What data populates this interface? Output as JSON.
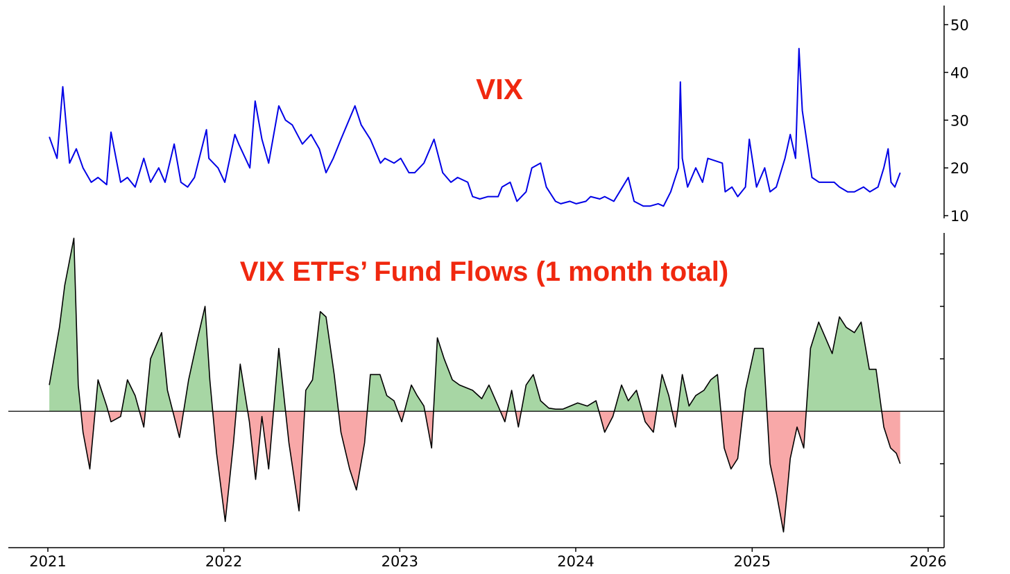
{
  "chart_data": [
    {
      "type": "line",
      "title": "VIX",
      "color": "#0000e6",
      "x_axis": "shared",
      "y_axis_side": "right",
      "ylim": [
        9,
        54
      ],
      "yticks": [
        10,
        20,
        30,
        40,
        50
      ],
      "ytick_labels": [
        "10",
        "20",
        "30",
        "40",
        "50"
      ],
      "x": [
        "2021-01-04",
        "2021-01-20",
        "2021-02-01",
        "2021-02-15",
        "2021-03-01",
        "2021-03-15",
        "2021-04-01",
        "2021-04-15",
        "2021-05-03",
        "2021-05-12",
        "2021-06-01",
        "2021-06-15",
        "2021-07-01",
        "2021-07-19",
        "2021-08-02",
        "2021-08-19",
        "2021-09-01",
        "2021-09-20",
        "2021-10-04",
        "2021-10-18",
        "2021-11-01",
        "2021-11-26",
        "2021-12-01",
        "2021-12-20",
        "2022-01-03",
        "2022-01-24",
        "2022-02-01",
        "2022-02-24",
        "2022-03-07",
        "2022-03-21",
        "2022-04-04",
        "2022-04-25",
        "2022-05-09",
        "2022-05-23",
        "2022-06-13",
        "2022-07-01",
        "2022-07-18",
        "2022-08-01",
        "2022-08-16",
        "2022-09-01",
        "2022-09-30",
        "2022-10-13",
        "2022-11-01",
        "2022-11-22",
        "2022-12-01",
        "2022-12-20",
        "2023-01-03",
        "2023-01-20",
        "2023-02-01",
        "2023-02-20",
        "2023-03-13",
        "2023-03-31",
        "2023-04-17",
        "2023-05-01",
        "2023-05-22",
        "2023-06-01",
        "2023-06-16",
        "2023-07-03",
        "2023-07-24",
        "2023-08-01",
        "2023-08-18",
        "2023-09-01",
        "2023-09-20",
        "2023-10-02",
        "2023-10-20",
        "2023-11-01",
        "2023-11-20",
        "2023-12-01",
        "2023-12-20",
        "2024-01-02",
        "2024-01-22",
        "2024-02-01",
        "2024-02-20",
        "2024-03-01",
        "2024-03-20",
        "2024-04-01",
        "2024-04-19",
        "2024-05-01",
        "2024-05-20",
        "2024-06-03",
        "2024-06-20",
        "2024-07-01",
        "2024-07-16",
        "2024-08-01",
        "2024-08-05",
        "2024-08-09",
        "2024-08-20",
        "2024-09-06",
        "2024-09-20",
        "2024-10-01",
        "2024-10-31",
        "2024-11-06",
        "2024-11-20",
        "2024-12-02",
        "2024-12-18",
        "2024-12-26",
        "2025-01-10",
        "2025-01-27",
        "2025-02-07",
        "2025-02-20",
        "2025-03-10",
        "2025-03-21",
        "2025-04-01",
        "2025-04-08",
        "2025-04-15",
        "2025-04-25",
        "2025-05-05",
        "2025-05-20",
        "2025-06-02",
        "2025-06-20",
        "2025-07-01",
        "2025-07-18",
        "2025-08-01",
        "2025-08-20",
        "2025-09-02",
        "2025-09-19",
        "2025-10-01",
        "2025-10-10",
        "2025-10-16",
        "2025-10-24",
        "2025-11-04"
      ],
      "y": [
        26.5,
        22,
        37,
        21,
        24,
        20,
        17,
        18,
        16.5,
        27.5,
        17,
        18,
        16,
        22,
        17,
        20,
        17,
        25,
        17,
        16,
        18,
        28,
        22,
        20,
        17,
        27,
        25,
        20,
        34,
        26,
        21,
        33,
        30,
        29,
        25,
        27,
        24,
        19,
        22,
        26,
        33,
        29,
        26,
        21,
        22,
        21,
        22,
        19,
        19,
        21,
        26,
        19,
        17,
        18,
        17,
        14,
        13.5,
        14,
        14,
        16,
        17,
        13,
        15,
        20,
        21,
        16,
        13,
        12.5,
        13,
        12.5,
        13,
        14,
        13.5,
        14,
        13,
        15,
        18,
        13,
        12,
        12,
        12.5,
        12,
        15,
        20,
        38,
        22,
        16,
        20,
        17,
        22,
        21,
        15,
        16,
        14,
        16,
        26,
        16,
        20,
        15,
        16,
        22,
        27,
        22,
        45,
        32,
        25,
        18,
        17,
        17,
        17,
        16,
        15,
        15,
        16,
        15,
        16,
        20,
        24,
        17,
        16,
        19
      ]
    },
    {
      "type": "area",
      "title": "VIX ETFs’ Fund Flows (1 month total)",
      "x_axis": "shared",
      "y_axis_side": "right",
      "ytick_labels_shown": false,
      "positive_color": "#a7d6a4",
      "negative_color": "#f8a8a8",
      "line_color": "#000000",
      "ylim": [
        -1.3,
        1.7
      ],
      "x": [
        "2021-01-04",
        "2021-01-25",
        "2021-02-05",
        "2021-02-24",
        "2021-03-05",
        "2021-03-15",
        "2021-03-29",
        "2021-04-15",
        "2021-05-03",
        "2021-05-12",
        "2021-06-01",
        "2021-06-15",
        "2021-07-01",
        "2021-07-19",
        "2021-08-02",
        "2021-08-25",
        "2021-09-06",
        "2021-10-01",
        "2021-10-20",
        "2021-11-08",
        "2021-11-23",
        "2021-12-03",
        "2021-12-17",
        "2022-01-04",
        "2022-01-21",
        "2022-02-04",
        "2022-02-23",
        "2022-03-08",
        "2022-03-21",
        "2022-04-04",
        "2022-04-25",
        "2022-05-16",
        "2022-06-06",
        "2022-06-20",
        "2022-07-04",
        "2022-07-20",
        "2022-08-01",
        "2022-08-18",
        "2022-09-01",
        "2022-09-19",
        "2022-10-03",
        "2022-10-20",
        "2022-11-01",
        "2022-11-21",
        "2022-12-05",
        "2022-12-20",
        "2023-01-05",
        "2023-01-25",
        "2023-02-06",
        "2023-02-20",
        "2023-03-08",
        "2023-03-20",
        "2023-04-03",
        "2023-04-20",
        "2023-05-05",
        "2023-06-01",
        "2023-06-20",
        "2023-07-05",
        "2023-07-24",
        "2023-08-07",
        "2023-08-21",
        "2023-09-04",
        "2023-09-20",
        "2023-10-05",
        "2023-10-20",
        "2023-11-06",
        "2023-11-20",
        "2023-12-05",
        "2024-01-05",
        "2024-01-25",
        "2024-02-12",
        "2024-03-01",
        "2024-03-18",
        "2024-04-05",
        "2024-04-19",
        "2024-05-06",
        "2024-05-24",
        "2024-06-10",
        "2024-06-28",
        "2024-07-12",
        "2024-07-26",
        "2024-08-09",
        "2024-08-23",
        "2024-09-06",
        "2024-09-23",
        "2024-10-07",
        "2024-10-21",
        "2024-11-04",
        "2024-11-18",
        "2024-12-02",
        "2024-12-18",
        "2025-01-06",
        "2025-01-24",
        "2025-02-07",
        "2025-02-21",
        "2025-03-07",
        "2025-03-21",
        "2025-04-04",
        "2025-04-18",
        "2025-05-02",
        "2025-05-19",
        "2025-06-02",
        "2025-06-16",
        "2025-07-01",
        "2025-07-15",
        "2025-08-01",
        "2025-08-15",
        "2025-09-01",
        "2025-09-15",
        "2025-10-01",
        "2025-10-15",
        "2025-10-27",
        "2025-11-04"
      ],
      "y": [
        0.25,
        0.8,
        1.2,
        1.65,
        0.25,
        -0.2,
        -0.55,
        0.3,
        0.05,
        -0.1,
        -0.05,
        0.3,
        0.15,
        -0.15,
        0.5,
        0.75,
        0.2,
        -0.25,
        0.3,
        0.7,
        1.0,
        0.3,
        -0.4,
        -1.05,
        -0.3,
        0.45,
        -0.1,
        -0.65,
        -0.05,
        -0.55,
        0.6,
        -0.3,
        -0.95,
        0.2,
        0.3,
        0.95,
        0.9,
        0.35,
        -0.2,
        -0.55,
        -0.75,
        -0.3,
        0.35,
        0.35,
        0.15,
        0.1,
        -0.1,
        0.25,
        0.15,
        0.05,
        -0.35,
        0.7,
        0.5,
        0.3,
        0.25,
        0.2,
        0.12,
        0.25,
        0.05,
        -0.1,
        0.2,
        -0.15,
        0.25,
        0.35,
        0.1,
        0.03,
        0.02,
        0.02,
        0.08,
        0.05,
        0.1,
        -0.2,
        -0.05,
        0.25,
        0.1,
        0.2,
        -0.1,
        -0.2,
        0.35,
        0.15,
        -0.15,
        0.35,
        0.05,
        0.15,
        0.2,
        0.3,
        0.35,
        -0.35,
        -0.55,
        -0.45,
        0.2,
        0.6,
        0.6,
        -0.5,
        -0.8,
        -1.15,
        -0.45,
        -0.15,
        -0.35,
        0.6,
        0.85,
        0.7,
        0.55,
        0.9,
        0.8,
        0.75,
        0.85,
        0.4,
        0.4,
        -0.15,
        -0.35,
        -0.4,
        -0.5
      ]
    }
  ],
  "x_axis": {
    "ticks": [
      "2021",
      "2022",
      "2023",
      "2024",
      "2025",
      "2026"
    ]
  }
}
